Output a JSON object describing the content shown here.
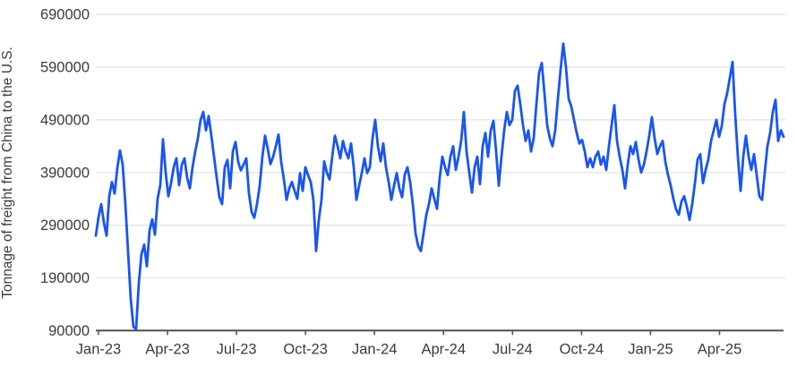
{
  "chart_data": {
    "type": "line",
    "title": "",
    "xlabel": "",
    "ylabel": "Tonnage of freight from China to the U.S.",
    "legend": "none",
    "grid": true,
    "ylim": [
      90000,
      690000
    ],
    "y_ticks": [
      {
        "value": 90000,
        "label": "90000"
      },
      {
        "value": 190000,
        "label": "190000"
      },
      {
        "value": 290000,
        "label": "290000"
      },
      {
        "value": 390000,
        "label": "390000"
      },
      {
        "value": 490000,
        "label": "490000"
      },
      {
        "value": 590000,
        "label": "590000"
      },
      {
        "value": 690000,
        "label": "690000"
      }
    ],
    "x_ticks": [
      {
        "label": "Jan-23",
        "month": 0
      },
      {
        "label": "Apr-23",
        "month": 3
      },
      {
        "label": "Jul-23",
        "month": 6
      },
      {
        "label": "Oct-23",
        "month": 9
      },
      {
        "label": "Jan-24",
        "month": 12
      },
      {
        "label": "Apr-24",
        "month": 15
      },
      {
        "label": "Jul-24",
        "month": 18
      },
      {
        "label": "Oct-24",
        "month": 21
      },
      {
        "label": "Jan-25",
        "month": 24
      },
      {
        "label": "Apr-25",
        "month": 27
      }
    ],
    "series": [
      {
        "name": "Tonnage of freight from China to the U.S.",
        "start_date": "2023-01-01",
        "step_days": 3.56,
        "values": [
          270000,
          305000,
          330000,
          295000,
          270000,
          345000,
          372000,
          350000,
          398000,
          432000,
          405000,
          330000,
          240000,
          150000,
          97000,
          93000,
          180000,
          235000,
          253000,
          212000,
          280000,
          301000,
          272000,
          340000,
          366000,
          453000,
          390000,
          345000,
          370000,
          400000,
          417000,
          366000,
          405000,
          417000,
          380000,
          360000,
          400000,
          430000,
          455000,
          490000,
          505000,
          470000,
          497000,
          460000,
          420000,
          380000,
          343000,
          330000,
          400000,
          414000,
          360000,
          430000,
          448000,
          410000,
          394000,
          405000,
          417000,
          350000,
          315000,
          304000,
          330000,
          365000,
          420000,
          460000,
          435000,
          406000,
          420000,
          440000,
          462000,
          410000,
          377000,
          338000,
          360000,
          372000,
          355000,
          340000,
          389000,
          355000,
          400000,
          385000,
          372000,
          338000,
          241000,
          300000,
          338000,
          411000,
          390000,
          377000,
          420000,
          460000,
          440000,
          417000,
          450000,
          430000,
          417000,
          445000,
          400000,
          338000,
          365000,
          389000,
          417000,
          389000,
          400000,
          455000,
          490000,
          440000,
          411000,
          445000,
          400000,
          372000,
          338000,
          365000,
          389000,
          360000,
          343000,
          386000,
          400000,
          372000,
          330000,
          275000,
          250000,
          241000,
          275000,
          309000,
          330000,
          360000,
          340000,
          321000,
          380000,
          420000,
          400000,
          385000,
          420000,
          440000,
          395000,
          420000,
          450000,
          505000,
          430000,
          390000,
          352000,
          400000,
          420000,
          368000,
          440000,
          465000,
          420000,
          470000,
          488000,
          430000,
          365000,
          420000,
          470000,
          505000,
          480000,
          490000,
          545000,
          555000,
          520000,
          480000,
          450000,
          470000,
          430000,
          455000,
          520000,
          580000,
          598000,
          540000,
          480000,
          455000,
          440000,
          470000,
          530000,
          585000,
          635000,
          590000,
          530000,
          515000,
          490000,
          465000,
          445000,
          452000,
          430000,
          400000,
          417000,
          400000,
          420000,
          430000,
          405000,
          420000,
          395000,
          440000,
          480000,
          518000,
          450000,
          420000,
          395000,
          360000,
          405000,
          440000,
          425000,
          448000,
          415000,
          390000,
          405000,
          430000,
          460000,
          495000,
          455000,
          425000,
          440000,
          450000,
          410000,
          385000,
          365000,
          340000,
          320000,
          310000,
          335000,
          345000,
          325000,
          300000,
          330000,
          370000,
          415000,
          425000,
          370000,
          395000,
          415000,
          450000,
          470000,
          490000,
          458000,
          478000,
          520000,
          540000,
          570000,
          600000,
          500000,
          420000,
          355000,
          420000,
          460000,
          420000,
          395000,
          425000,
          385000,
          345000,
          338000,
          390000,
          440000,
          465000,
          505000,
          528000,
          450000,
          470000,
          458000
        ]
      }
    ],
    "colors": {
      "line": "#1a55ef",
      "grid": "#e4e4e4",
      "axis": "#4f4f4f",
      "labels": "#3b3b3b",
      "background": "#ffffff"
    }
  }
}
